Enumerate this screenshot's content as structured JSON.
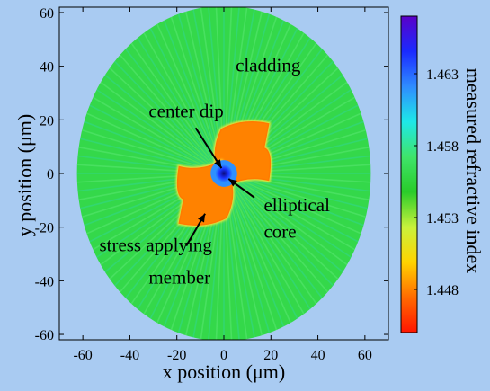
{
  "chart_data": {
    "type": "heatmap",
    "title": "",
    "xlabel": "x position (μm)",
    "ylabel": "y position (μm)",
    "xlim": [
      -70,
      70
    ],
    "ylim": [
      -62,
      62
    ],
    "xticks": [
      "-60",
      "-40",
      "-20",
      "0",
      "20",
      "40",
      "60"
    ],
    "yticks": [
      "60",
      "40",
      "20",
      "0",
      "-20",
      "-40",
      "-60"
    ],
    "xtick_values": [
      -60,
      -40,
      -20,
      0,
      20,
      40,
      60
    ],
    "ytick_values": [
      60,
      40,
      20,
      0,
      -20,
      -40,
      -60
    ],
    "fiber": {
      "cladding_radius": 62.5,
      "cladding_index": 1.456,
      "core_index": 1.462,
      "center_dip_index": 1.468,
      "sap_index": 1.448,
      "sap_centers": [
        [
          8,
          6.5
        ],
        [
          -8,
          -6.5
        ]
      ]
    },
    "colorbar": {
      "label": "measured refractive index",
      "range": [
        1.445,
        1.467
      ],
      "ticks": [
        "1.463",
        "1.458",
        "1.453",
        "1.448"
      ],
      "tick_values": [
        1.463,
        1.458,
        1.453,
        1.448
      ],
      "colors_top_to_bottom": [
        "#5a00c8",
        "#1a2aff",
        "#2f8cff",
        "#1ee8e8",
        "#3fe46a",
        "#29cc2a",
        "#c9f23c",
        "#ffd400",
        "#ff6a00",
        "#ff1500"
      ]
    },
    "annotations": [
      {
        "text": "cladding",
        "x": 5,
        "y": 38
      },
      {
        "text": "center dip",
        "x": -32,
        "y": 21
      },
      {
        "text": "elliptical",
        "x": 17,
        "y": -14
      },
      {
        "text": "core",
        "x": 17,
        "y": -24
      },
      {
        "text": "stress applying",
        "x": -53,
        "y": -29
      },
      {
        "text": "member",
        "x": -32,
        "y": -41
      }
    ],
    "arrows": [
      {
        "from": [
          -12,
          17
        ],
        "to": [
          -1,
          2
        ]
      },
      {
        "from": [
          13,
          -9
        ],
        "to": [
          2,
          -2
        ]
      },
      {
        "from": [
          -16,
          -27
        ],
        "to": [
          -8,
          -15
        ]
      }
    ]
  }
}
